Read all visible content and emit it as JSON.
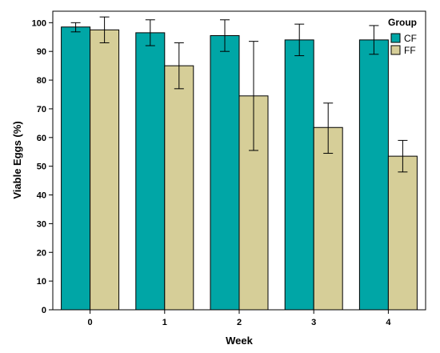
{
  "chart_data": {
    "type": "bar",
    "categories": [
      "0",
      "1",
      "2",
      "3",
      "4"
    ],
    "series": [
      {
        "name": "CF",
        "color": "#00A6A6",
        "values": [
          98.5,
          96.5,
          95.5,
          94,
          94
        ],
        "error_low": [
          96.8,
          92,
          90,
          88.5,
          89
        ],
        "error_high": [
          100,
          101,
          101,
          99.5,
          99
        ]
      },
      {
        "name": "FF",
        "color": "#D6CE98",
        "values": [
          97.5,
          85,
          74.5,
          63.5,
          53.5
        ],
        "error_low": [
          93,
          77,
          55.5,
          54.5,
          48
        ],
        "error_high": [
          102,
          93,
          93.5,
          72,
          59
        ]
      }
    ],
    "xlabel": "Week",
    "ylabel": "Viable Eggs (%)",
    "ylim": [
      0,
      104
    ],
    "yticks": [
      "0",
      "10",
      "20",
      "30",
      "40",
      "50",
      "60",
      "70",
      "80",
      "90",
      "100"
    ],
    "legend": {
      "title": "Group",
      "position": "top-right"
    },
    "grid": false
  }
}
